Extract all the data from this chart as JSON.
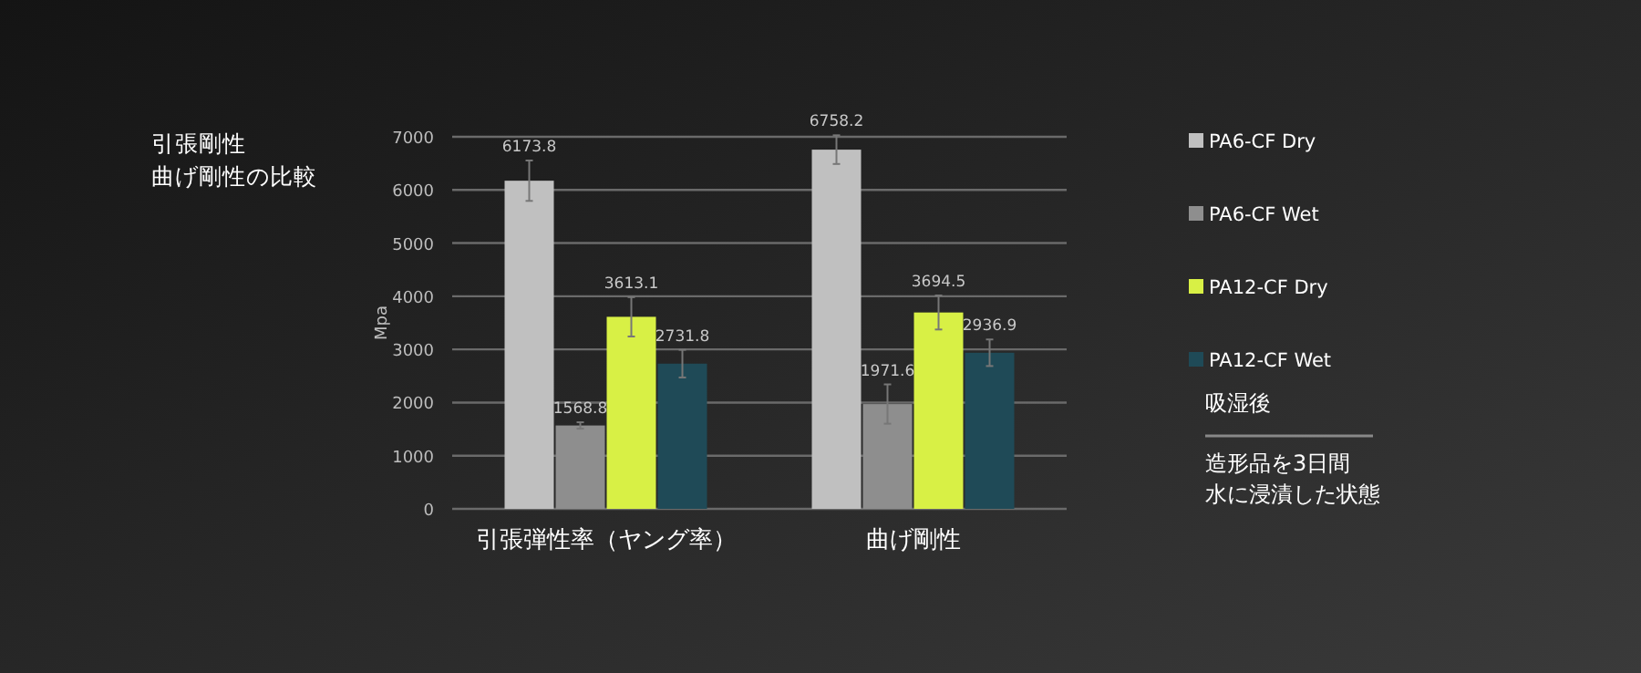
{
  "chart_data": {
    "type": "bar",
    "title": "引張剛性",
    "subtitle": "曲げ剛性の比較",
    "ylabel": "Mpa",
    "categories": [
      "引張弾性率（ヤング率）",
      "曲げ剛性"
    ],
    "series": [
      {
        "name": "PA6-CF Dry",
        "color": "#c0c0c0",
        "values": [
          6173.8,
          6758.2
        ],
        "errors": [
          380,
          270
        ]
      },
      {
        "name": "PA6-CF Wet",
        "color": "#8e8e8e",
        "values": [
          1568.8,
          1971.6
        ],
        "errors": [
          60,
          370
        ]
      },
      {
        "name": "PA12-CF Dry",
        "color": "#d8f045",
        "values": [
          3613.1,
          3694.5
        ],
        "errors": [
          370,
          320
        ]
      },
      {
        "name": "PA12-CF Wet",
        "color": "#1f4a57",
        "values": [
          2731.8,
          2936.9
        ],
        "errors": [
          260,
          250
        ]
      }
    ],
    "ylim": [
      0,
      7000
    ],
    "yticks": [
      0,
      1000,
      2000,
      3000,
      4000,
      5000,
      6000,
      7000
    ],
    "grid": "y",
    "legend": "right",
    "data_labels": true,
    "annotations": [
      "吸湿後",
      "造形品を3日間",
      "水に浸漬した状態"
    ]
  }
}
